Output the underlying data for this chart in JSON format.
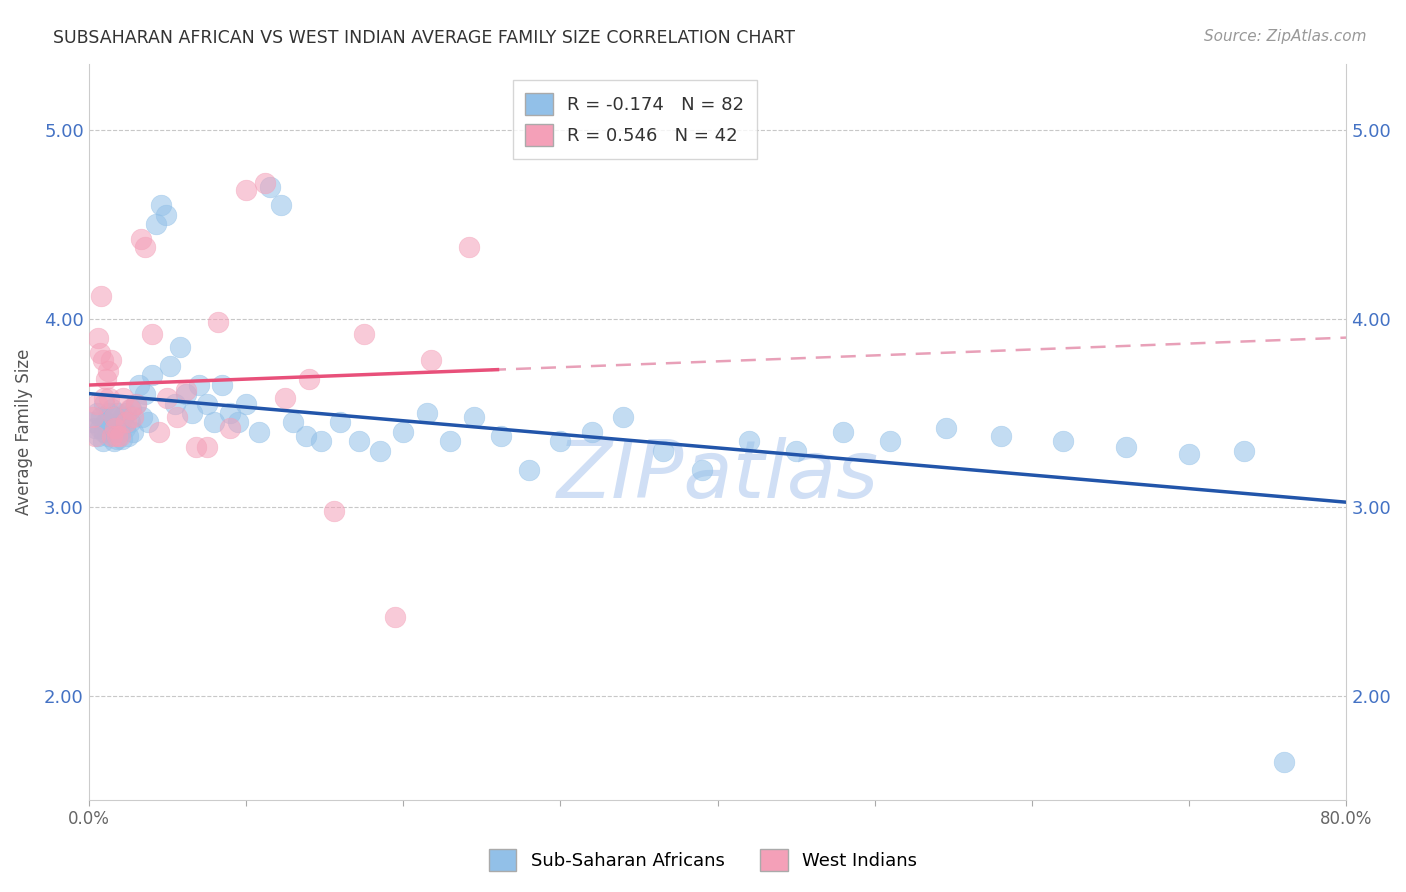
{
  "title": "SUBSAHARAN AFRICAN VS WEST INDIAN AVERAGE FAMILY SIZE CORRELATION CHART",
  "source": "Source: ZipAtlas.com",
  "ylabel": "Average Family Size",
  "xlim": [
    0.0,
    0.8
  ],
  "ylim": [
    1.45,
    5.35
  ],
  "yticks": [
    2.0,
    3.0,
    4.0,
    5.0
  ],
  "xticks": [
    0.0,
    0.1,
    0.2,
    0.3,
    0.4,
    0.5,
    0.6,
    0.7,
    0.8
  ],
  "xticklabels": [
    "0.0%",
    "",
    "",
    "",
    "",
    "",
    "",
    "",
    "80.0%"
  ],
  "background_color": "#ffffff",
  "grid_color": "#c8c8c8",
  "ytick_color": "#4472c4",
  "xtick_color": "#666666",
  "blue_color": "#92c0e8",
  "pink_color": "#f4a0b8",
  "blue_line_color": "#2255aa",
  "pink_line_color": "#e8507a",
  "dashed_line_color": "#e8a0b8",
  "watermark_color": "#d0dff5",
  "legend_blue_label": "R = -0.174   N = 82",
  "legend_pink_label": "R = 0.546   N = 42",
  "series_blue_label": "Sub-Saharan Africans",
  "series_pink_label": "West Indians",
  "blue_x": [
    0.003,
    0.004,
    0.005,
    0.006,
    0.007,
    0.008,
    0.009,
    0.01,
    0.01,
    0.011,
    0.012,
    0.013,
    0.014,
    0.015,
    0.015,
    0.016,
    0.016,
    0.017,
    0.018,
    0.018,
    0.019,
    0.02,
    0.021,
    0.022,
    0.023,
    0.024,
    0.025,
    0.026,
    0.027,
    0.028,
    0.03,
    0.032,
    0.034,
    0.036,
    0.038,
    0.04,
    0.043,
    0.046,
    0.049,
    0.052,
    0.055,
    0.058,
    0.062,
    0.066,
    0.07,
    0.075,
    0.08,
    0.085,
    0.09,
    0.095,
    0.1,
    0.108,
    0.115,
    0.122,
    0.13,
    0.138,
    0.148,
    0.16,
    0.172,
    0.185,
    0.2,
    0.215,
    0.23,
    0.245,
    0.262,
    0.28,
    0.3,
    0.32,
    0.34,
    0.365,
    0.39,
    0.42,
    0.45,
    0.48,
    0.51,
    0.545,
    0.58,
    0.62,
    0.66,
    0.7,
    0.735,
    0.76
  ],
  "blue_y": [
    3.45,
    3.42,
    3.5,
    3.38,
    3.42,
    3.48,
    3.35,
    3.4,
    3.55,
    3.45,
    3.38,
    3.5,
    3.44,
    3.52,
    3.4,
    3.35,
    3.48,
    3.42,
    3.36,
    3.5,
    3.44,
    3.4,
    3.36,
    3.48,
    3.42,
    3.5,
    3.38,
    3.45,
    3.52,
    3.4,
    3.55,
    3.65,
    3.48,
    3.6,
    3.45,
    3.7,
    4.5,
    4.6,
    4.55,
    3.75,
    3.55,
    3.85,
    3.6,
    3.5,
    3.65,
    3.55,
    3.45,
    3.65,
    3.5,
    3.45,
    3.55,
    3.4,
    4.7,
    4.6,
    3.45,
    3.38,
    3.35,
    3.45,
    3.35,
    3.3,
    3.4,
    3.5,
    3.35,
    3.48,
    3.38,
    3.2,
    3.35,
    3.4,
    3.48,
    3.3,
    3.2,
    3.35,
    3.3,
    3.4,
    3.35,
    3.42,
    3.38,
    3.35,
    3.32,
    3.28,
    3.3,
    1.65
  ],
  "pink_x": [
    0.003,
    0.004,
    0.005,
    0.006,
    0.007,
    0.008,
    0.009,
    0.01,
    0.011,
    0.012,
    0.013,
    0.014,
    0.015,
    0.016,
    0.017,
    0.018,
    0.02,
    0.022,
    0.024,
    0.026,
    0.028,
    0.03,
    0.033,
    0.036,
    0.04,
    0.045,
    0.05,
    0.056,
    0.062,
    0.068,
    0.075,
    0.082,
    0.09,
    0.1,
    0.112,
    0.125,
    0.14,
    0.156,
    0.175,
    0.195,
    0.218,
    0.242
  ],
  "pink_y": [
    3.48,
    3.38,
    3.55,
    3.9,
    3.82,
    4.12,
    3.78,
    3.58,
    3.68,
    3.72,
    3.58,
    3.78,
    3.38,
    3.48,
    3.42,
    3.38,
    3.38,
    3.58,
    3.45,
    3.52,
    3.48,
    3.55,
    4.42,
    4.38,
    3.92,
    3.4,
    3.58,
    3.48,
    3.62,
    3.32,
    3.32,
    3.98,
    3.42,
    4.68,
    4.72,
    3.58,
    3.68,
    2.98,
    3.92,
    2.42,
    3.78,
    4.38
  ]
}
